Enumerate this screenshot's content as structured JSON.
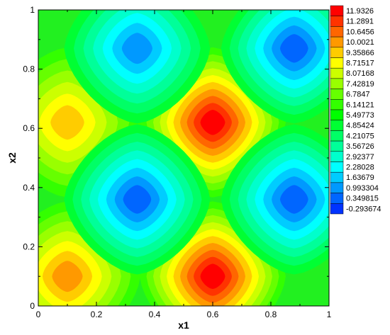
{
  "chart_data": {
    "type": "heatmap",
    "subtype": "filled-contour",
    "title": "",
    "xlabel": "x1",
    "ylabel": "x2",
    "xlim": [
      0,
      1
    ],
    "ylim": [
      0,
      1
    ],
    "x_ticks": [
      0,
      0.2,
      0.4,
      0.6,
      0.8,
      1
    ],
    "x_tick_labels": [
      "0",
      "0.2",
      "0.4",
      "0.6",
      "0.8",
      "1"
    ],
    "y_ticks": [
      0,
      0.2,
      0.4,
      0.6,
      0.8,
      1
    ],
    "y_tick_labels": [
      "0",
      "0.2",
      "0.4",
      "0.6",
      "0.8",
      "1"
    ],
    "grid": false,
    "legend_position": "right",
    "contour_levels": [
      11.9326,
      11.2891,
      10.6456,
      10.0021,
      9.35866,
      8.71517,
      8.07168,
      7.42819,
      6.7847,
      6.14121,
      5.49773,
      4.85424,
      4.21075,
      3.56726,
      2.92377,
      2.28028,
      1.63679,
      0.993304,
      0.349815,
      -0.293674
    ],
    "level_labels": [
      "11.9326",
      "11.2891",
      "10.6456",
      "10.0021",
      "9.35866",
      "8.71517",
      "8.07168",
      "7.42819",
      "6.7847",
      "6.14121",
      "5.49773",
      "4.85424",
      "4.21075",
      "3.56726",
      "2.92377",
      "2.28028",
      "1.63679",
      "0.993304",
      "0.349815",
      "-0.293674"
    ],
    "level_colors": [
      "#ff0000",
      "#ff3300",
      "#ff6600",
      "#ff9900",
      "#ffcc00",
      "#ffff00",
      "#ccff00",
      "#99ff00",
      "#66ff00",
      "#33ff00",
      "#00ff00",
      "#00ff33",
      "#00ff66",
      "#00ff99",
      "#00ffcc",
      "#00ffff",
      "#00ccff",
      "#0099ff",
      "#0066ff",
      "#0033ff"
    ],
    "background_level": 5.49773,
    "extrema": [
      {
        "x": 0.1,
        "y": 0.1,
        "value": 10.0,
        "kind": "max"
      },
      {
        "x": 0.6,
        "y": 0.1,
        "value": 11.9,
        "kind": "max"
      },
      {
        "x": 0.1,
        "y": 0.62,
        "value": 9.6,
        "kind": "max"
      },
      {
        "x": 0.6,
        "y": 0.62,
        "value": 11.9,
        "kind": "max"
      },
      {
        "x": 0.34,
        "y": 0.36,
        "value": 0.6,
        "kind": "min"
      },
      {
        "x": 0.88,
        "y": 0.36,
        "value": 0.5,
        "kind": "min"
      },
      {
        "x": 0.34,
        "y": 0.87,
        "value": 0.9,
        "kind": "min"
      },
      {
        "x": 0.88,
        "y": 0.87,
        "value": 0.2,
        "kind": "min"
      }
    ]
  }
}
